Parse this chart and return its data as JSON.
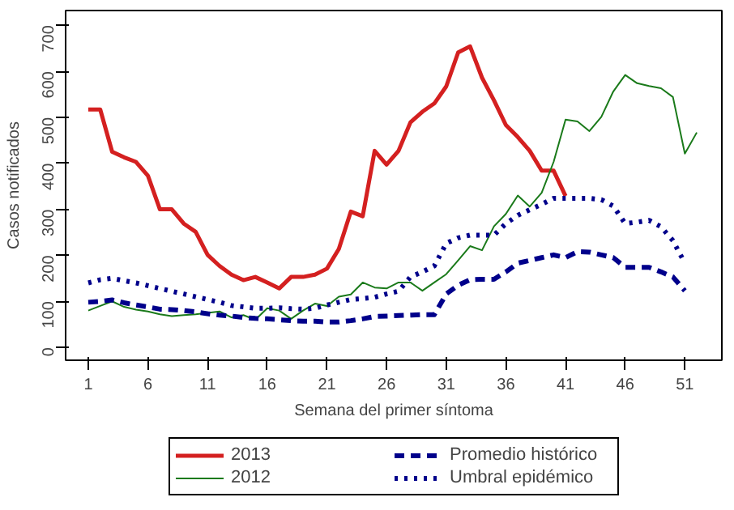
{
  "chart_data": {
    "type": "line",
    "xlabel": "Semana del primer síntoma",
    "ylabel": "Casos notificados",
    "xlim": [
      -0.9,
      54.1
    ],
    "ylim": [
      -28,
      732
    ],
    "xticks": [
      1,
      6,
      11,
      16,
      21,
      26,
      31,
      36,
      41,
      46,
      51
    ],
    "yticks": [
      0,
      100,
      200,
      300,
      400,
      500,
      600,
      700
    ],
    "grid": false,
    "legend": "bottom",
    "series": [
      {
        "name": "2013",
        "color": "#d42020",
        "line_style": "solid",
        "x": [
          1,
          2,
          3,
          4,
          5,
          6,
          7,
          8,
          9,
          10,
          11,
          12,
          13,
          14,
          15,
          16,
          17,
          18,
          19,
          20,
          21,
          22,
          23,
          24,
          25,
          26,
          27,
          28,
          29,
          30,
          31,
          32,
          33,
          34,
          35,
          36,
          37,
          38,
          39,
          40,
          41
        ],
        "values": [
          517,
          517,
          425,
          413,
          403,
          373,
          300,
          300,
          269,
          251,
          201,
          177,
          158,
          146,
          153,
          141,
          128,
          153,
          153,
          158,
          171,
          214,
          295,
          285,
          427,
          397,
          427,
          489,
          512,
          530,
          567,
          641,
          654,
          586,
          537,
          483,
          457,
          427,
          384,
          384,
          329
        ]
      },
      {
        "name": "2012",
        "color": "#1a7a1a",
        "line_style": "solid",
        "x": [
          1,
          2,
          3,
          4,
          5,
          6,
          7,
          8,
          9,
          10,
          11,
          12,
          13,
          14,
          15,
          16,
          17,
          18,
          19,
          20,
          21,
          22,
          23,
          24,
          25,
          26,
          27,
          28,
          29,
          30,
          31,
          32,
          33,
          34,
          35,
          36,
          37,
          38,
          39,
          40,
          41,
          42,
          43,
          44,
          45,
          46,
          47,
          48,
          49,
          50,
          51,
          52
        ],
        "values": [
          80,
          90,
          100,
          88,
          82,
          78,
          72,
          68,
          70,
          72,
          75,
          78,
          65,
          70,
          60,
          85,
          80,
          62,
          80,
          95,
          90,
          110,
          115,
          141,
          130,
          128,
          141,
          141,
          123,
          141,
          159,
          189,
          220,
          211,
          263,
          290,
          330,
          306,
          336,
          403,
          495,
          491,
          470,
          501,
          556,
          592,
          574,
          568,
          563,
          544,
          421,
          467
        ]
      },
      {
        "name": "Promedio histórico",
        "color": "#00008b",
        "line_style": "dashed",
        "x": [
          1,
          2,
          3,
          4,
          5,
          6,
          7,
          8,
          9,
          10,
          11,
          12,
          13,
          14,
          15,
          16,
          17,
          18,
          19,
          20,
          21,
          22,
          23,
          24,
          25,
          26,
          27,
          28,
          29,
          30,
          31,
          32,
          33,
          34,
          35,
          36,
          37,
          38,
          39,
          40,
          41,
          42,
          43,
          44,
          45,
          46,
          47,
          48,
          49,
          50,
          51
        ],
        "values": [
          98,
          100,
          103,
          97,
          92,
          88,
          83,
          82,
          80,
          77,
          73,
          70,
          68,
          65,
          63,
          62,
          60,
          58,
          57,
          57,
          55,
          55,
          58,
          62,
          67,
          68,
          69,
          70,
          71,
          71,
          116,
          135,
          147,
          148,
          148,
          164,
          183,
          189,
          195,
          201,
          195,
          208,
          207,
          201,
          195,
          174,
          174,
          174,
          164,
          153,
          123
        ]
      },
      {
        "name": "Umbral epidémico",
        "color": "#00008b",
        "line_style": "dotted",
        "x": [
          1,
          2,
          3,
          4,
          5,
          6,
          7,
          8,
          9,
          10,
          11,
          12,
          13,
          14,
          15,
          16,
          17,
          18,
          19,
          20,
          21,
          22,
          23,
          24,
          25,
          26,
          27,
          28,
          29,
          30,
          31,
          32,
          33,
          34,
          35,
          36,
          37,
          38,
          39,
          40,
          41,
          42,
          43,
          44,
          45,
          46,
          47,
          48,
          49,
          50,
          51
        ],
        "values": [
          140,
          147,
          150,
          145,
          140,
          134,
          128,
          122,
          116,
          110,
          104,
          98,
          91,
          88,
          85,
          85,
          86,
          84,
          83,
          85,
          92,
          98,
          104,
          106,
          109,
          116,
          122,
          153,
          164,
          177,
          226,
          238,
          244,
          244,
          244,
          269,
          287,
          299,
          311,
          324,
          324,
          324,
          324,
          321,
          307,
          269,
          272,
          276,
          262,
          232,
          183
        ]
      }
    ]
  }
}
